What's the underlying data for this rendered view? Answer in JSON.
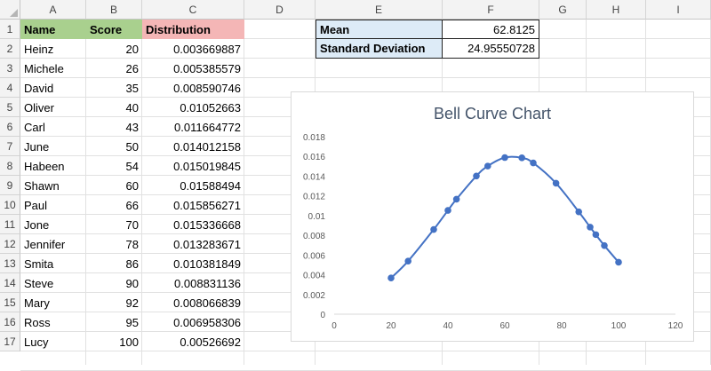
{
  "columns": [
    "A",
    "B",
    "C",
    "D",
    "E",
    "F",
    "G",
    "H",
    "I"
  ],
  "rows": [
    "1",
    "2",
    "3",
    "4",
    "5",
    "6",
    "7",
    "8",
    "9",
    "10",
    "11",
    "12",
    "13",
    "14",
    "15",
    "16",
    "17"
  ],
  "headers": {
    "name": "Name",
    "score": "Score",
    "distribution": "Distribution"
  },
  "colors": {
    "name_header": "#a9d08e",
    "score_header": "#a9d08e",
    "distribution_header": "#f4b6b6",
    "stats_label": "#ddebf7",
    "series": "#4472c4"
  },
  "table": [
    {
      "name": "Heinz",
      "score": "20",
      "distribution": "0.003669887"
    },
    {
      "name": "Michele",
      "score": "26",
      "distribution": "0.005385579"
    },
    {
      "name": "David",
      "score": "35",
      "distribution": "0.008590746"
    },
    {
      "name": "Oliver",
      "score": "40",
      "distribution": "0.01052663"
    },
    {
      "name": "Carl",
      "score": "43",
      "distribution": "0.011664772"
    },
    {
      "name": "June",
      "score": "50",
      "distribution": "0.014012158"
    },
    {
      "name": "Habeen",
      "score": "54",
      "distribution": "0.015019845"
    },
    {
      "name": "Shawn",
      "score": "60",
      "distribution": "0.01588494"
    },
    {
      "name": "Paul",
      "score": "66",
      "distribution": "0.015856271"
    },
    {
      "name": "Jone",
      "score": "70",
      "distribution": "0.015336668"
    },
    {
      "name": "Jennifer",
      "score": "78",
      "distribution": "0.013283671"
    },
    {
      "name": "Smita",
      "score": "86",
      "distribution": "0.010381849"
    },
    {
      "name": "Steve",
      "score": "90",
      "distribution": "0.008831136"
    },
    {
      "name": "Mary",
      "score": "92",
      "distribution": "0.008066839"
    },
    {
      "name": "Ross",
      "score": "95",
      "distribution": "0.006958306"
    },
    {
      "name": "Lucy",
      "score": "100",
      "distribution": "0.00526692"
    }
  ],
  "stats": {
    "mean_label": "Mean",
    "mean_value": "62.8125",
    "sd_label": "Standard Deviation",
    "sd_value": "24.95550728"
  },
  "chart_data": {
    "type": "scatter",
    "title": "Bell Curve Chart",
    "xlabel": "",
    "ylabel": "",
    "xlim": [
      0,
      120
    ],
    "ylim": [
      0,
      0.018
    ],
    "xticks": [
      "0",
      "20",
      "40",
      "60",
      "80",
      "100",
      "120"
    ],
    "yticks": [
      "0",
      "0.002",
      "0.004",
      "0.006",
      "0.008",
      "0.01",
      "0.012",
      "0.014",
      "0.016",
      "0.018"
    ],
    "grid": false,
    "line": "smooth",
    "x": [
      20,
      26,
      35,
      40,
      43,
      50,
      54,
      60,
      66,
      70,
      78,
      86,
      90,
      92,
      95,
      100
    ],
    "y": [
      0.003669887,
      0.005385579,
      0.008590746,
      0.01052663,
      0.011664772,
      0.014012158,
      0.015019845,
      0.01588494,
      0.015856271,
      0.015336668,
      0.013283671,
      0.010381849,
      0.008831136,
      0.008066839,
      0.006958306,
      0.00526692
    ]
  }
}
